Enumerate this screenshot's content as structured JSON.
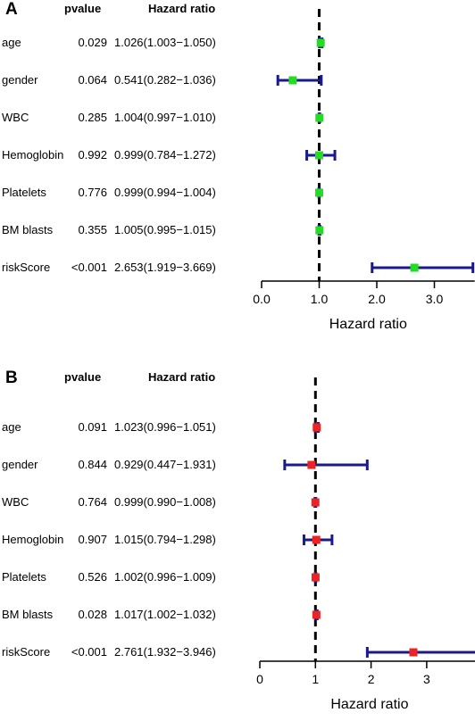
{
  "chart_data": [
    {
      "type": "forest",
      "panel_label": "A",
      "columns": [
        "pvalue",
        "Hazard ratio"
      ],
      "xlabel": "Hazard ratio",
      "xlim": [
        0,
        3.7
      ],
      "ticks": [
        0,
        1,
        2,
        3
      ],
      "tick_labels": [
        "0.0",
        "1.0",
        "2.0",
        "3.0"
      ],
      "reference_line": 1,
      "marker_color": "#22dd22",
      "ci_color": "#1a1a8c",
      "rows": [
        {
          "label": "age",
          "pvalue": "0.029",
          "hr_text": "1.026(1.003−1.050)",
          "hr": 1.026,
          "lower": 1.003,
          "upper": 1.05
        },
        {
          "label": "gender",
          "pvalue": "0.064",
          "hr_text": "0.541(0.282−1.036)",
          "hr": 0.541,
          "lower": 0.282,
          "upper": 1.036
        },
        {
          "label": "WBC",
          "pvalue": "0.285",
          "hr_text": "1.004(0.997−1.010)",
          "hr": 1.004,
          "lower": 0.997,
          "upper": 1.01
        },
        {
          "label": "Hemoglobin",
          "pvalue": "0.992",
          "hr_text": "0.999(0.784−1.272)",
          "hr": 0.999,
          "lower": 0.784,
          "upper": 1.272
        },
        {
          "label": "Platelets",
          "pvalue": "0.776",
          "hr_text": "0.999(0.994−1.004)",
          "hr": 0.999,
          "lower": 0.994,
          "upper": 1.004
        },
        {
          "label": "BM blasts",
          "pvalue": "0.355",
          "hr_text": "1.005(0.995−1.015)",
          "hr": 1.005,
          "lower": 0.995,
          "upper": 1.015
        },
        {
          "label": "riskScore",
          "pvalue": "<0.001",
          "hr_text": "2.653(1.919−3.669)",
          "hr": 2.653,
          "lower": 1.919,
          "upper": 3.669
        }
      ]
    },
    {
      "type": "forest",
      "panel_label": "B",
      "columns": [
        "pvalue",
        "Hazard ratio"
      ],
      "xlabel": "Hazard ratio",
      "xlim": [
        0,
        3.946
      ],
      "ticks": [
        0,
        1,
        2,
        3
      ],
      "tick_labels": [
        "0",
        "1",
        "2",
        "3"
      ],
      "reference_line": 1,
      "marker_color": "#ee2222",
      "ci_color": "#1a1a8c",
      "rows": [
        {
          "label": "age",
          "pvalue": "0.091",
          "hr_text": "1.023(0.996−1.051)",
          "hr": 1.023,
          "lower": 0.996,
          "upper": 1.051
        },
        {
          "label": "gender",
          "pvalue": "0.844",
          "hr_text": "0.929(0.447−1.931)",
          "hr": 0.929,
          "lower": 0.447,
          "upper": 1.931
        },
        {
          "label": "WBC",
          "pvalue": "0.764",
          "hr_text": "0.999(0.990−1.008)",
          "hr": 0.999,
          "lower": 0.99,
          "upper": 1.008
        },
        {
          "label": "Hemoglobin",
          "pvalue": "0.907",
          "hr_text": "1.015(0.794−1.298)",
          "hr": 1.015,
          "lower": 0.794,
          "upper": 1.298
        },
        {
          "label": "Platelets",
          "pvalue": "0.526",
          "hr_text": "1.002(0.996−1.009)",
          "hr": 1.002,
          "lower": 0.996,
          "upper": 1.009
        },
        {
          "label": "BM blasts",
          "pvalue": "0.028",
          "hr_text": "1.017(1.002−1.032)",
          "hr": 1.017,
          "lower": 1.002,
          "upper": 1.032
        },
        {
          "label": "riskScore",
          "pvalue": "<0.001",
          "hr_text": "2.761(1.932−3.946)",
          "hr": 2.761,
          "lower": 1.932,
          "upper": 3.946
        }
      ]
    }
  ]
}
